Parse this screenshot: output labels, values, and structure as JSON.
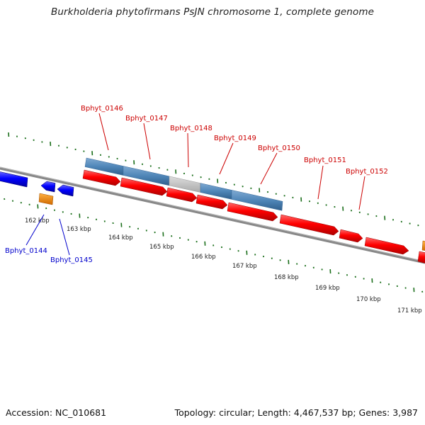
{
  "title": "Burkholderia phytofirmans PsJN chromosome 1, complete genome",
  "footer": {
    "accession": "Accession: NC_010681",
    "summary": "Topology: circular; Length: 4,467,537 bp; Genes: 3,987"
  },
  "colors": {
    "forward_cds": "#ee0000",
    "reverse_cds": "#0000ee",
    "highlight_band": "#4f86b8",
    "highlight_gap": "#c8c8c8",
    "misc_feature": "#f08a00",
    "backbone": "#888888",
    "ticks": "#1a6e1a",
    "forward_label": "#cc0000",
    "reverse_label": "#0000cc"
  },
  "kbp_labels": [
    "162 kbp",
    "163 kbp",
    "164 kbp",
    "165 kbp",
    "166 kbp",
    "167 kbp",
    "168 kbp",
    "169 kbp",
    "170 kbp",
    "171 kbp"
  ],
  "gene_labels_forward": [
    "Bphyt_0146",
    "Bphyt_0147",
    "Bphyt_0148",
    "Bphyt_0149",
    "Bphyt_0150",
    "Bphyt_0151",
    "Bphyt_0152"
  ],
  "gene_labels_reverse": [
    "Bphyt_0144",
    "Bphyt_0145"
  ]
}
